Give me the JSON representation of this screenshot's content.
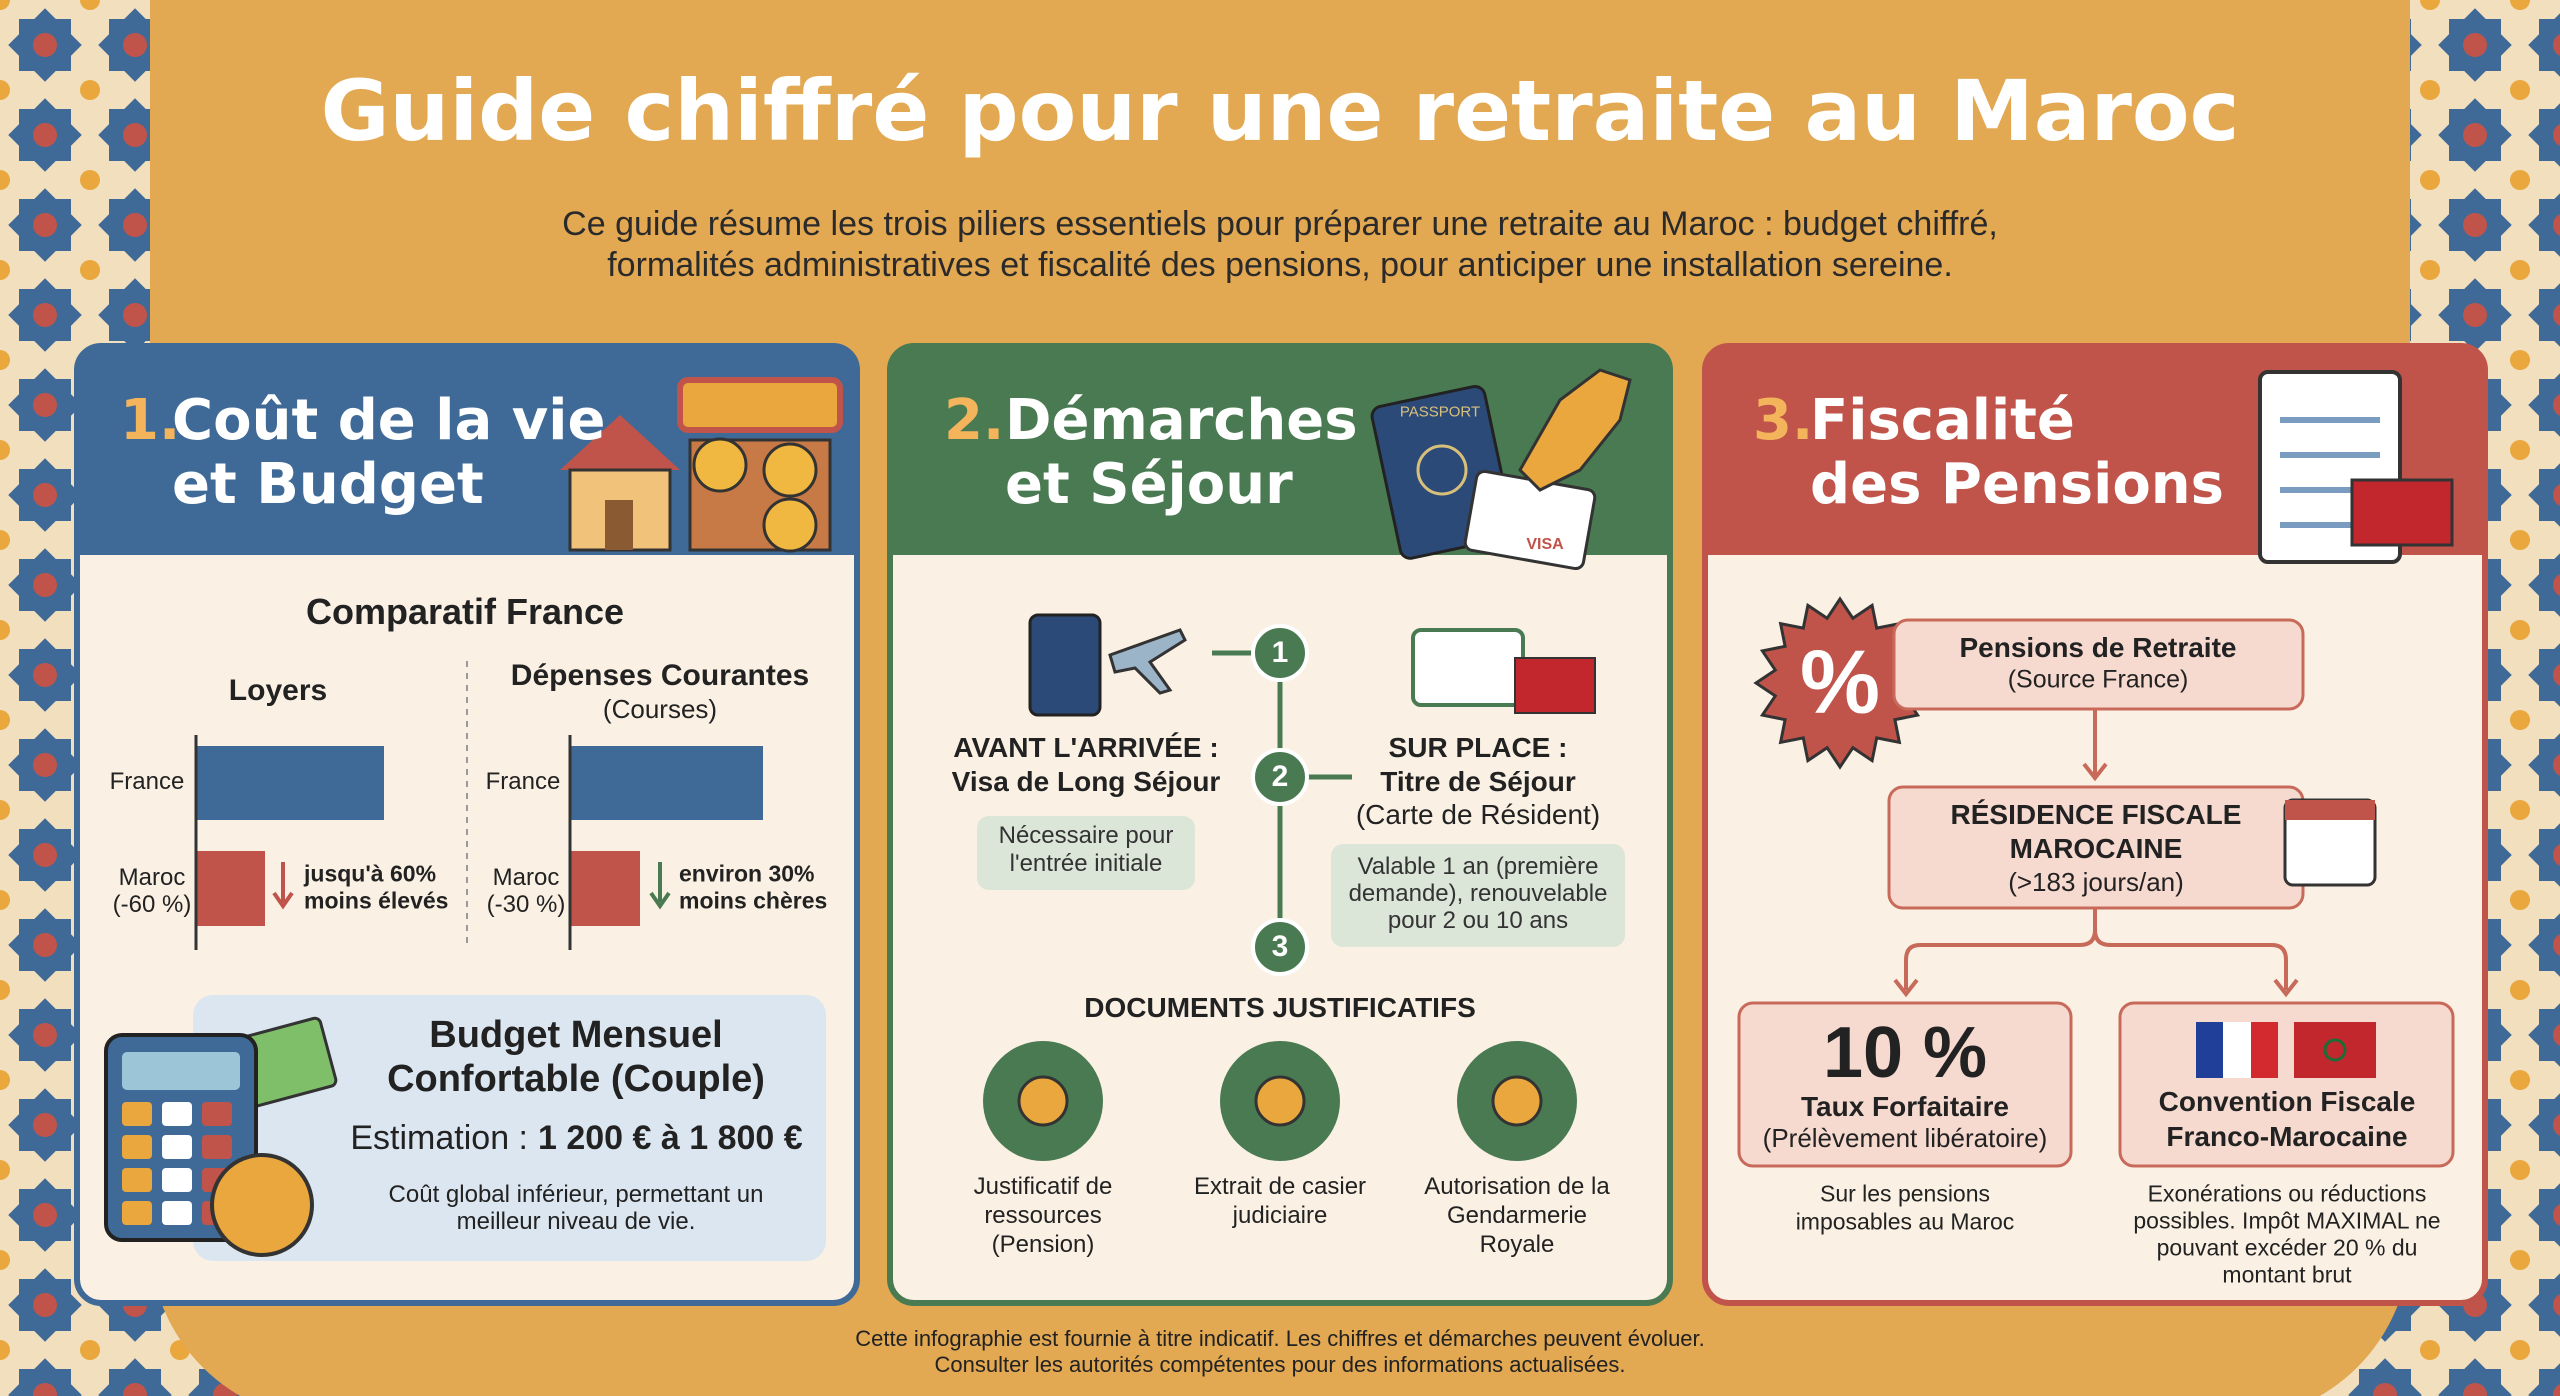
{
  "header": {
    "title": "Guide chiffré pour une retraite au Maroc",
    "subtitle_lines": [
      "Ce guide résume les trois piliers essentiels pour préparer une retraite au Maroc : budget chiffré,",
      "formalités administratives et fiscalité des pensions, pour anticiper une installation sereine."
    ]
  },
  "panels": [
    {
      "number": "1.",
      "title_lines": [
        "Coût de la vie",
        "et Budget"
      ],
      "comparison": {
        "title": "Comparatif France",
        "groups": [
          {
            "title": "Loyers",
            "france_label": "France",
            "maroc_label_lines": [
              "Maroc",
              "(-60 %)"
            ],
            "note_lines": [
              "jusqu'à 60%",
              "moins élevés"
            ]
          },
          {
            "title": "Dépenses Courantes",
            "subtitle": "(Courses)",
            "france_label": "France",
            "maroc_label_lines": [
              "Maroc",
              "(-30 %)"
            ],
            "note_lines": [
              "environ 30%",
              "moins chères"
            ]
          }
        ]
      },
      "budget": {
        "title_lines": [
          "Budget Mensuel",
          "Confortable (Couple)"
        ],
        "estimate_label": "Estimation :",
        "estimate_value": "1 200 € à 1 800 €",
        "note_lines": [
          "Coût global inférieur, permettant un",
          "meilleur niveau de vie."
        ]
      }
    },
    {
      "number": "2.",
      "title_lines": [
        "Démarches",
        "et Séjour"
      ],
      "icon_texts": {
        "passport": "PASSPORT",
        "visa": "VISA"
      },
      "steps": [
        {
          "number": "1",
          "title_lines": [
            "AVANT L'ARRIVÉE :",
            "Visa de Long Séjour"
          ],
          "note_lines": [
            "Nécessaire pour",
            "l'entrée initiale"
          ]
        },
        {
          "number": "2",
          "title_lines": [
            "SUR PLACE :",
            "Titre de Séjour"
          ],
          "subtitle": "(Carte de Résident)",
          "note_lines": [
            "Valable 1 an (première",
            "demande), renouvelable",
            "pour 2 ou 10 ans"
          ]
        },
        {
          "number": "3"
        }
      ],
      "documents": {
        "title": "DOCUMENTS JUSTIFICATIFS",
        "items": [
          {
            "lines": [
              "Justificatif de",
              "ressources",
              "(Pension)"
            ]
          },
          {
            "lines": [
              "Extrait de casier",
              "judiciaire"
            ]
          },
          {
            "lines": [
              "Autorisation de la",
              "Gendarmerie",
              "Royale"
            ]
          }
        ]
      }
    },
    {
      "number": "3.",
      "title_lines": [
        "Fiscalité",
        "des Pensions"
      ],
      "flow": {
        "badge": "%",
        "source": {
          "title": "Pensions de Retraite",
          "subtitle": "(Source France)"
        },
        "residence": {
          "title_lines": [
            "RÉSIDENCE FISCALE",
            "MAROCAINE"
          ],
          "subtitle": "(>183 jours/an)"
        },
        "options": [
          {
            "big": "10 %",
            "title": "Taux Forfaitaire",
            "subtitle": "(Prélèvement libératoire)",
            "note_lines": [
              "Sur les pensions",
              "imposables au Maroc"
            ]
          },
          {
            "title_lines": [
              "Convention Fiscale",
              "Franco-Marocaine"
            ],
            "note_lines": [
              "Exonérations ou réductions",
              "possibles. Impôt MAXIMAL ne",
              "pouvant excéder 20 % du",
              "montant brut"
            ]
          }
        ]
      }
    }
  ],
  "footer_lines": [
    "Cette infographie est fournie à titre indicatif. Les chiffres et démarches peuvent évoluer.",
    "Consulter les autorités compétentes pour des informations actualisées."
  ]
}
